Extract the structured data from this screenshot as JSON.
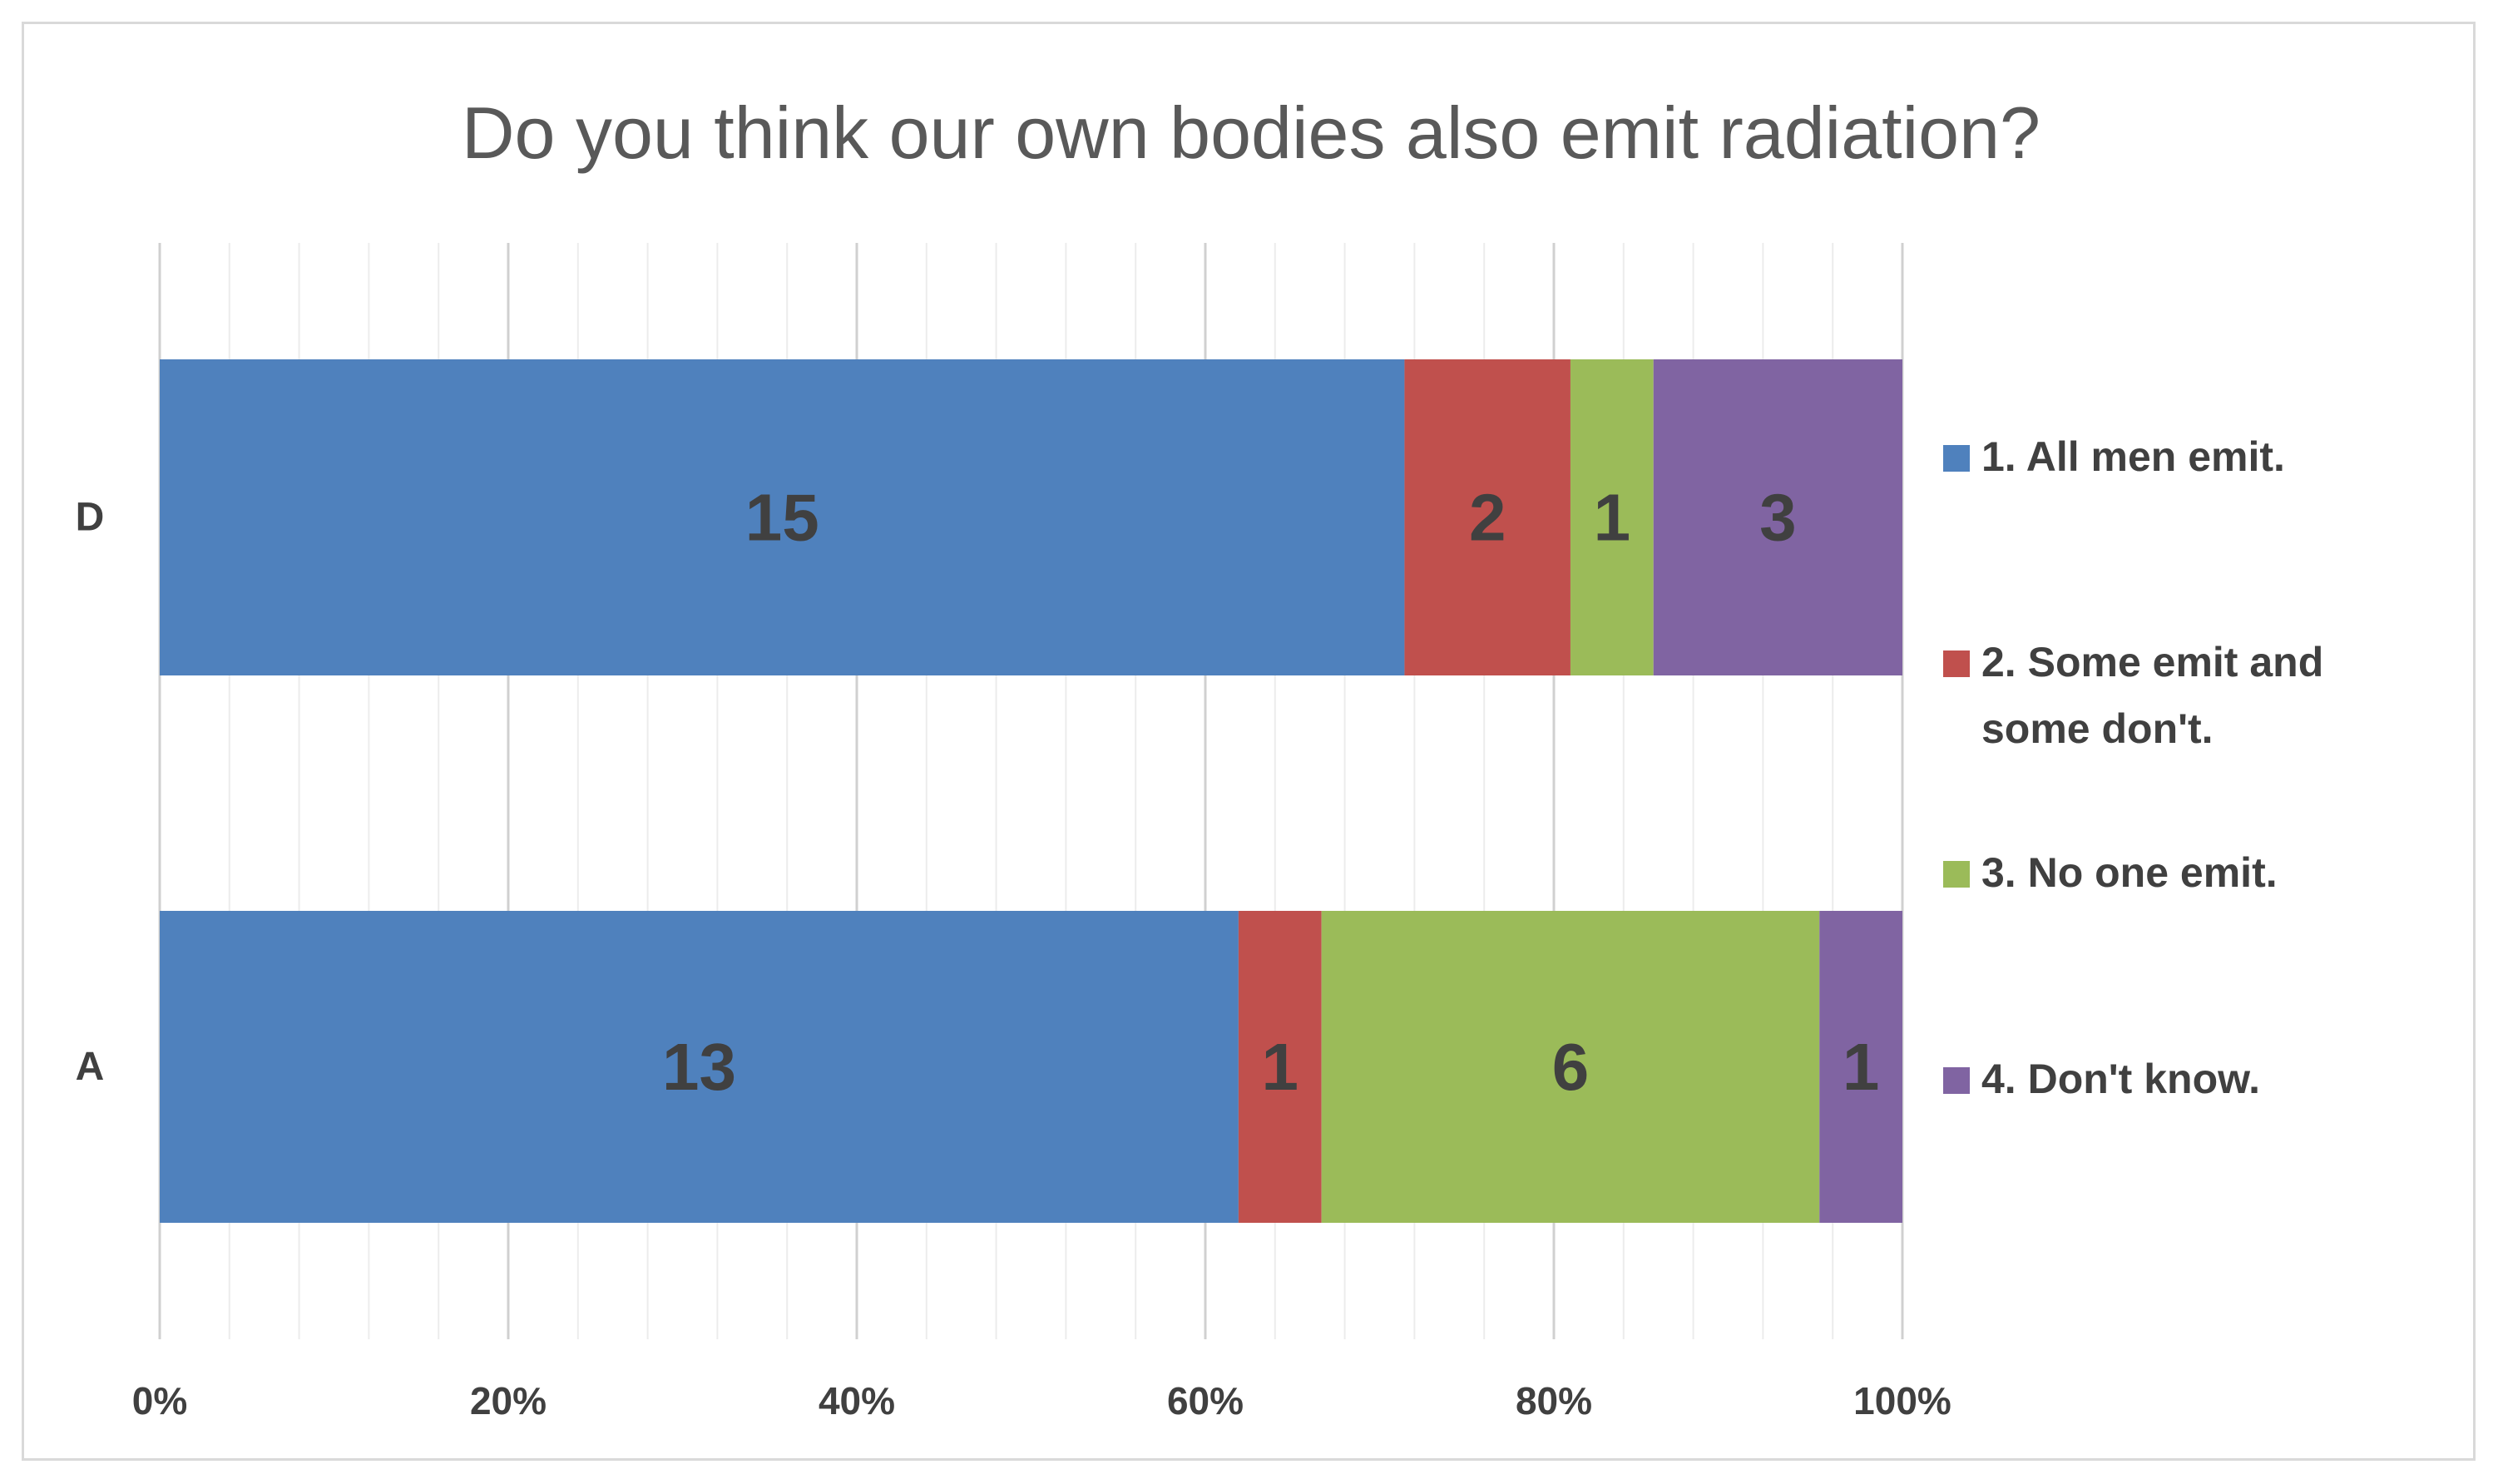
{
  "chart_data": {
    "type": "bar",
    "orientation": "horizontal",
    "stacking": "percent",
    "title": "Do you think our own bodies also emit radiation?",
    "categories": [
      "D",
      "A"
    ],
    "series": [
      {
        "name": "1. All men emit.",
        "values": [
          15,
          13
        ],
        "color": "#4f81bd"
      },
      {
        "name": "2. Some emit and some don't.",
        "values": [
          2,
          1
        ],
        "color": "#c0504d"
      },
      {
        "name": "3. No one emit.",
        "values": [
          1,
          6
        ],
        "color": "#9bbb59"
      },
      {
        "name": "4. Don't know.",
        "values": [
          3,
          1
        ],
        "color": "#8064a2"
      }
    ],
    "x_ticks": [
      "0%",
      "20%",
      "40%",
      "60%",
      "80%",
      "100%"
    ],
    "xlim": [
      0,
      100
    ],
    "grid": true,
    "legend_position": "right"
  }
}
